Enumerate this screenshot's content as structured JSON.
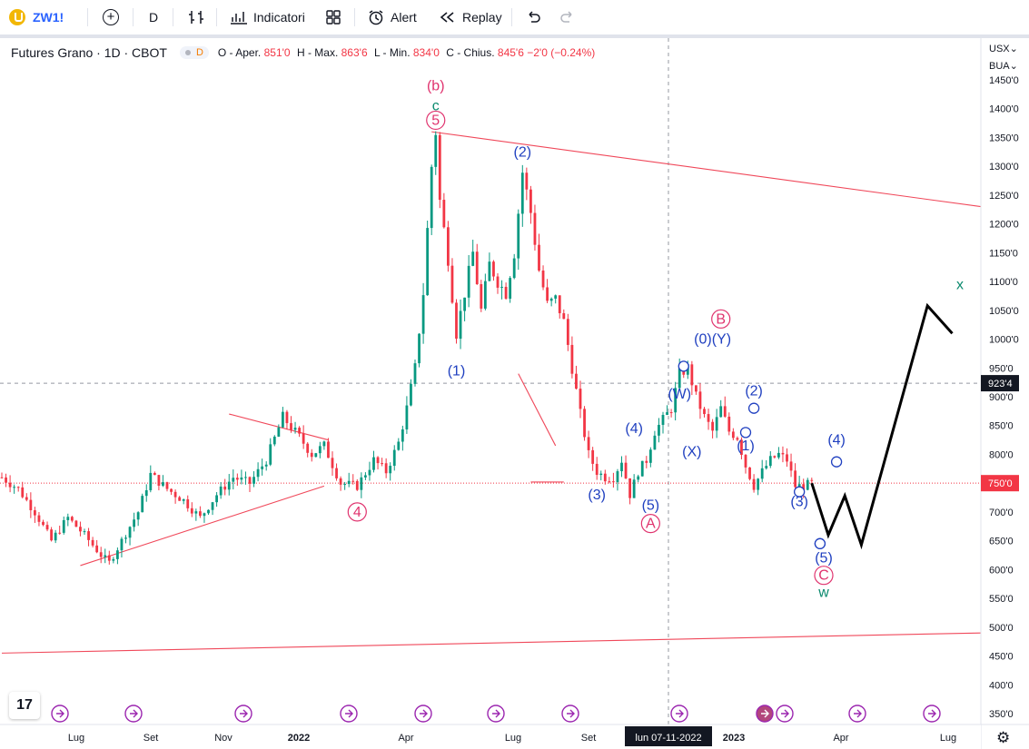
{
  "toolbar": {
    "symbol": "ZW1!",
    "interval": "D",
    "indicators_label": "Indicatori",
    "alert_label": "Alert",
    "replay_label": "Replay"
  },
  "legend": {
    "title": "Futures Grano · 1D · CBOT",
    "badge": "D",
    "open_label": "O - Aper.",
    "open": "851'0",
    "high_label": "H - Max.",
    "high": "863'6",
    "low_label": "L - Min.",
    "low": "834'0",
    "close_label": "C - Chius.",
    "close": "845'6",
    "change": "−2'0 (−0.24%)"
  },
  "scale": {
    "currency": "USX",
    "unit": "BUA"
  },
  "colors": {
    "up": "#089981",
    "down": "#f23645",
    "wave_blue": "#2040c0",
    "wave_pink": "#e0336e",
    "wave_green": "#0b8a6e",
    "trendline": "#f0485a",
    "projection": "#000000"
  },
  "chart_data": {
    "type": "candlestick",
    "y_ticks": [
      "1450'0",
      "1400'0",
      "1350'0",
      "1300'0",
      "1250'0",
      "1200'0",
      "1150'0",
      "1100'0",
      "1050'0",
      "1000'0",
      "950'0",
      "900'0",
      "850'0",
      "800'0",
      "750'0",
      "700'0",
      "650'0",
      "600'0",
      "550'0",
      "500'0",
      "450'0",
      "400'0",
      "350'0"
    ],
    "ylim": [
      330,
      1470
    ],
    "x_labels": [
      "Lug",
      "Set",
      "Nov",
      "2022",
      "Apr",
      "Lug",
      "Set",
      "2023",
      "Apr",
      "Lug"
    ],
    "crosshair": {
      "price_label": "923'4",
      "price": 923.5,
      "date_label": "lun 07-11-2022"
    },
    "last_price_label": "750'0",
    "last_price": 750,
    "price_path": [
      [
        0,
        760
      ],
      [
        4,
        740
      ],
      [
        8,
        700
      ],
      [
        12,
        650
      ],
      [
        16,
        690
      ],
      [
        20,
        660
      ],
      [
        24,
        625
      ],
      [
        26,
        612
      ],
      [
        29,
        650
      ],
      [
        33,
        700
      ],
      [
        36,
        765
      ],
      [
        40,
        740
      ],
      [
        44,
        720
      ],
      [
        48,
        690
      ],
      [
        52,
        730
      ],
      [
        56,
        760
      ],
      [
        60,
        750
      ],
      [
        64,
        790
      ],
      [
        68,
        865
      ],
      [
        72,
        830
      ],
      [
        75,
        800
      ],
      [
        78,
        815
      ],
      [
        82,
        750
      ],
      [
        86,
        745
      ],
      [
        90,
        790
      ],
      [
        93,
        770
      ],
      [
        96,
        820
      ],
      [
        98,
        880
      ],
      [
        100,
        950
      ],
      [
        102,
        1080
      ],
      [
        104,
        1300
      ],
      [
        105,
        1360
      ],
      [
        106,
        1240
      ],
      [
        108,
        1140
      ],
      [
        110,
        1010
      ],
      [
        112,
        1080
      ],
      [
        114,
        1150
      ],
      [
        116,
        1050
      ],
      [
        118,
        1130
      ],
      [
        120,
        1100
      ],
      [
        122,
        1080
      ],
      [
        124,
        1150
      ],
      [
        126,
        1290
      ],
      [
        128,
        1220
      ],
      [
        130,
        1120
      ],
      [
        132,
        1060
      ],
      [
        134,
        1070
      ],
      [
        136,
        1030
      ],
      [
        138,
        950
      ],
      [
        140,
        870
      ],
      [
        142,
        800
      ],
      [
        144,
        770
      ],
      [
        146,
        760
      ],
      [
        148,
        760
      ],
      [
        150,
        790
      ],
      [
        152,
        730
      ],
      [
        154,
        770
      ],
      [
        156,
        790
      ],
      [
        158,
        840
      ],
      [
        160,
        860
      ],
      [
        162,
        880
      ],
      [
        164,
        940
      ],
      [
        166,
        950
      ],
      [
        168,
        900
      ],
      [
        170,
        865
      ],
      [
        172,
        840
      ],
      [
        174,
        880
      ],
      [
        176,
        840
      ],
      [
        178,
        830
      ],
      [
        180,
        780
      ],
      [
        182,
        745
      ],
      [
        184,
        770
      ],
      [
        186,
        790
      ],
      [
        188,
        800
      ],
      [
        190,
        790
      ],
      [
        192,
        745
      ],
      [
        194,
        745
      ],
      [
        196,
        750
      ]
    ],
    "projection": [
      [
        196,
        750
      ],
      [
        200,
        660
      ],
      [
        204,
        728
      ],
      [
        208,
        643
      ],
      [
        224,
        1058
      ],
      [
        230,
        1010
      ]
    ],
    "annotations": [
      {
        "text": "(b)",
        "color": "pink",
        "x": 105,
        "y": 1440
      },
      {
        "text": "c",
        "color": "green",
        "x": 105,
        "y": 1405
      },
      {
        "text": "5",
        "color": "pink",
        "circle": true,
        "x": 105,
        "y": 1380
      },
      {
        "text": "(2)",
        "color": "blue",
        "x": 126,
        "y": 1325
      },
      {
        "text": "(1)",
        "color": "blue",
        "x": 110,
        "y": 945
      },
      {
        "text": "4",
        "color": "pink",
        "circle": true,
        "x": 86,
        "y": 700
      },
      {
        "text": "(3)",
        "color": "blue",
        "x": 144,
        "y": 730
      },
      {
        "text": "(4)",
        "color": "blue",
        "x": 153,
        "y": 845
      },
      {
        "text": "(5)",
        "color": "blue",
        "x": 157,
        "y": 712
      },
      {
        "text": "A",
        "color": "pink",
        "circle": true,
        "x": 157,
        "y": 680
      },
      {
        "text": "(W)",
        "color": "blue",
        "x": 164,
        "y": 905
      },
      {
        "text": "(X)",
        "color": "blue",
        "x": 167,
        "y": 805
      },
      {
        "text": "(0)(Y)",
        "color": "blue",
        "x": 172,
        "y": 1000
      },
      {
        "text": "B",
        "color": "pink",
        "circle": true,
        "x": 174,
        "y": 1035
      },
      {
        "text": "(2)",
        "color": "blue",
        "x": 182,
        "y": 910
      },
      {
        "text": "(1)",
        "color": "blue",
        "x": 180,
        "y": 815
      },
      {
        "text": "(4)",
        "color": "blue",
        "x": 202,
        "y": 825
      },
      {
        "text": "(3)",
        "color": "blue",
        "x": 193,
        "y": 718
      },
      {
        "text": "x",
        "color": "green",
        "x": 264,
        "y": 1095
      },
      {
        "text": "(5)",
        "color": "blue",
        "x": 226,
        "y": 620
      },
      {
        "text": "C",
        "color": "pink",
        "circle": true,
        "x": 226,
        "y": 590
      },
      {
        "text": "w",
        "color": "green",
        "x": 226,
        "y": 560
      }
    ]
  }
}
